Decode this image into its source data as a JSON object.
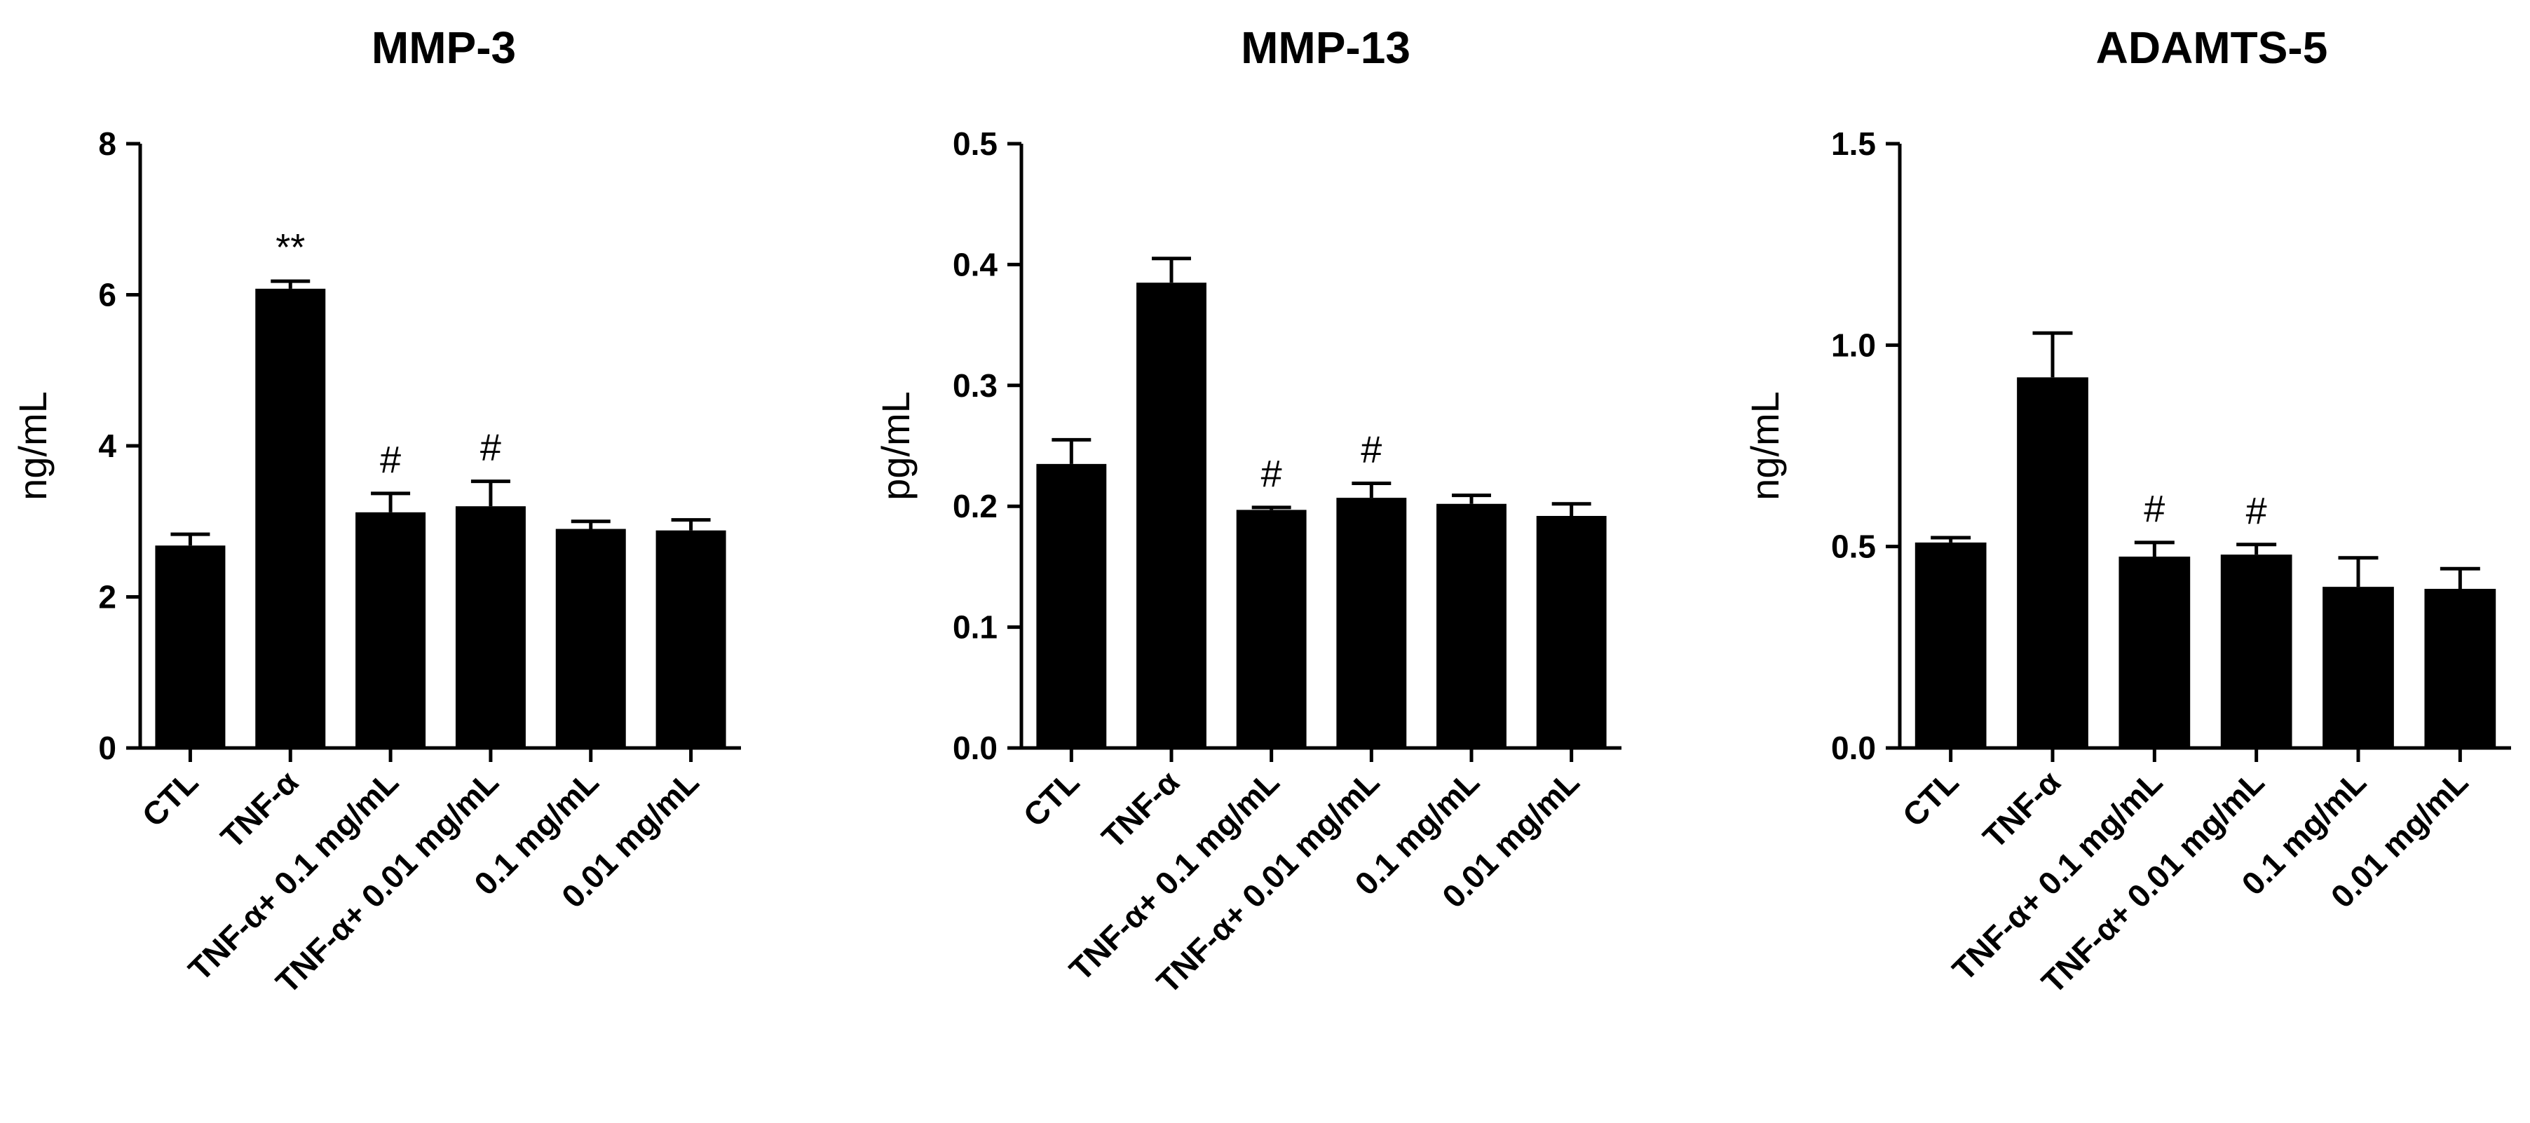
{
  "chart_data": [
    {
      "type": "bar",
      "title": "MMP-3",
      "ylabel": "ng/mL",
      "ylim": [
        0,
        8
      ],
      "yticks": [
        "0",
        "2",
        "4",
        "6",
        "8"
      ],
      "categories": [
        "CTL",
        "TNF-α",
        "TNF-α+ 0.1 mg/mL",
        "TNF-α+ 0.01 mg/mL",
        "0.1 mg/mL",
        "0.01 mg/mL"
      ],
      "values": [
        2.68,
        6.08,
        3.12,
        3.2,
        2.9,
        2.88
      ],
      "errors": [
        0.15,
        0.1,
        0.25,
        0.33,
        0.1,
        0.14
      ],
      "annotations": [
        "",
        "**",
        "#",
        "#",
        "",
        ""
      ]
    },
    {
      "type": "bar",
      "title": "MMP-13",
      "ylabel": "pg/mL",
      "ylim": [
        0,
        0.5
      ],
      "yticks": [
        "0.0",
        "0.1",
        "0.2",
        "0.3",
        "0.4",
        "0.5"
      ],
      "categories": [
        "CTL",
        "TNF-α",
        "TNF-α+ 0.1 mg/mL",
        "TNF-α+ 0.01 mg/mL",
        "0.1 mg/mL",
        "0.01 mg/mL"
      ],
      "values": [
        0.235,
        0.385,
        0.197,
        0.207,
        0.202,
        0.192
      ],
      "errors": [
        0.02,
        0.02,
        0.002,
        0.012,
        0.007,
        0.01
      ],
      "annotations": [
        "",
        "",
        "#",
        "#",
        "",
        ""
      ]
    },
    {
      "type": "bar",
      "title": "ADAMTS-5",
      "ylabel": "ng/mL",
      "ylim": [
        0,
        1.5
      ],
      "yticks": [
        "0.0",
        "0.5",
        "1.0",
        "1.5"
      ],
      "categories": [
        "CTL",
        "TNF-α",
        "TNF-α+ 0.1 mg/mL",
        "TNF-α+ 0.01 mg/mL",
        "0.1 mg/mL",
        "0.01 mg/mL"
      ],
      "values": [
        0.51,
        0.92,
        0.475,
        0.48,
        0.4,
        0.395
      ],
      "errors": [
        0.012,
        0.11,
        0.035,
        0.025,
        0.072,
        0.05
      ],
      "annotations": [
        "",
        "",
        "#",
        "#",
        "",
        ""
      ]
    }
  ]
}
